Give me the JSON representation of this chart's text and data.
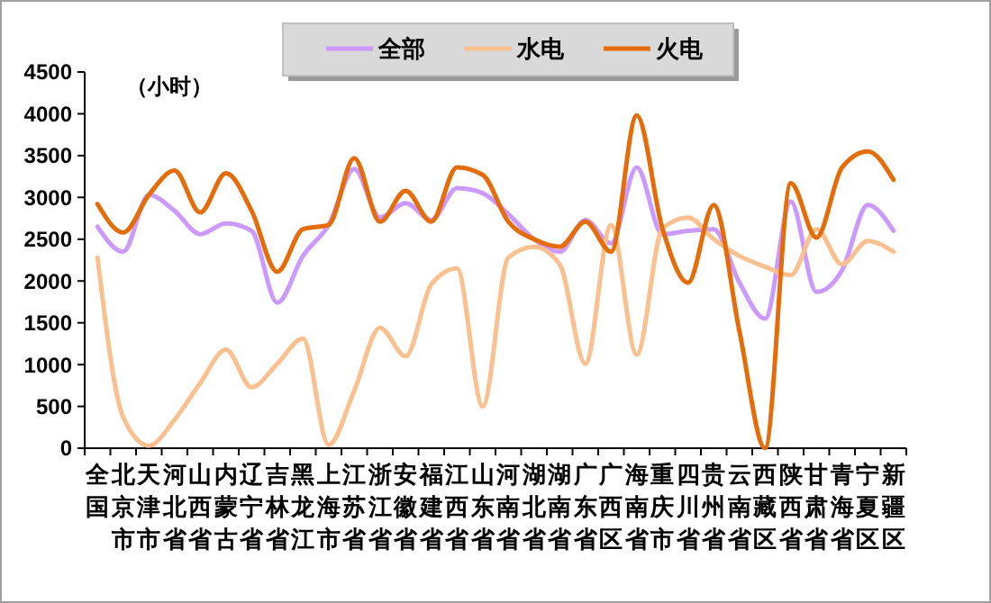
{
  "chart_data": {
    "type": "line",
    "annotations": [
      "（小时）"
    ],
    "categories": [
      "全国",
      "北京市",
      "天津市",
      "河北省",
      "山西省",
      "内蒙古",
      "辽宁省",
      "吉林省",
      "黑龙江",
      "上海市",
      "江苏省",
      "浙江省",
      "安徽省",
      "福建省",
      "江西省",
      "山东省",
      "河南省",
      "湖北省",
      "湖南省",
      "广东省",
      "广西区",
      "海南省",
      "重庆市",
      "四川省",
      "贵州省",
      "云南省",
      "西藏区",
      "陕西省",
      "甘肃省",
      "青海省",
      "宁夏区",
      "新疆区"
    ],
    "series": [
      {
        "name": "全部",
        "color": "#cc99ff",
        "values": [
          2650,
          2350,
          3030,
          2840,
          2560,
          2690,
          2600,
          1740,
          2300,
          2670,
          3340,
          2760,
          2930,
          2730,
          3110,
          3050,
          2800,
          2500,
          2350,
          2730,
          2450,
          3360,
          2560,
          2600,
          2620,
          1980,
          1550,
          2950,
          1870,
          2130,
          2910,
          2600
        ]
      },
      {
        "name": "水电",
        "color": "#fac090",
        "values": [
          2280,
          370,
          30,
          340,
          780,
          1180,
          730,
          1010,
          1310,
          40,
          690,
          1440,
          1100,
          1960,
          2150,
          500,
          2280,
          2410,
          2200,
          1010,
          2670,
          1120,
          2630,
          2760,
          2500,
          2300,
          2170,
          2070,
          2620,
          2200,
          2480,
          2350
        ]
      },
      {
        "name": "火电",
        "color": "#e46c0a",
        "values": [
          2920,
          2580,
          3030,
          3320,
          2820,
          3290,
          2840,
          2110,
          2620,
          2670,
          3470,
          2710,
          3080,
          2710,
          3360,
          3270,
          2710,
          2500,
          2410,
          2710,
          2350,
          3980,
          2630,
          1980,
          2910,
          1400,
          0,
          3170,
          2520,
          3360,
          3550,
          3210
        ]
      }
    ],
    "ylim": [
      0,
      4500
    ],
    "yticks": [
      0,
      500,
      1000,
      1500,
      2000,
      2500,
      3000,
      3500,
      4000,
      4500
    ],
    "grid": false,
    "legend": "top",
    "marker": "none",
    "line_style": "solid"
  }
}
